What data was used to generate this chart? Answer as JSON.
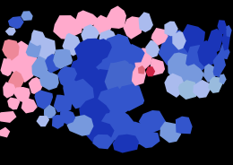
{
  "background_color": "#000000",
  "colors": {
    "strong_dem": "#1a35b8",
    "dem": "#3355cc",
    "med_dem": "#4466cc",
    "light_dem": "#7799dd",
    "pale_dem": "#aabbee",
    "light_rep": "#ffaacc",
    "rep": "#ee8899",
    "med_rep": "#dd6677",
    "strong_rep": "#cc2244",
    "very_light_blue": "#99bbdd"
  },
  "figsize": [
    2.6,
    1.84
  ],
  "dpi": 100
}
